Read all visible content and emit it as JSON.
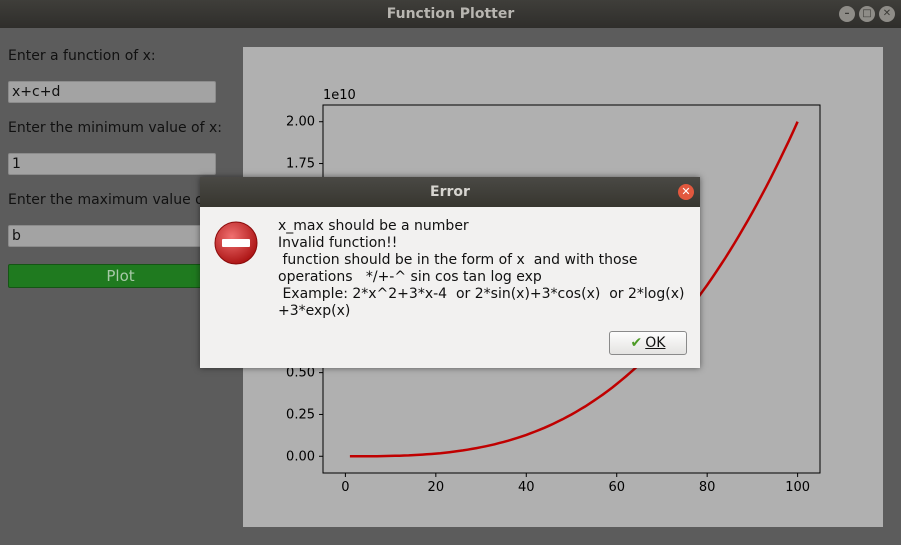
{
  "window": {
    "title": "Function Plotter"
  },
  "form": {
    "function_label": "Enter a function of x:",
    "function_value": "x+c+d",
    "min_label": "Enter the minimum value of x:",
    "min_value": "1",
    "max_label": "Enter the maximum value of",
    "max_value": "b",
    "plot_label": "Plot"
  },
  "chart_data": {
    "type": "line",
    "offset_text": "1e10",
    "x": [
      1,
      10,
      20,
      30,
      40,
      50,
      60,
      65,
      70,
      75,
      80,
      85,
      90,
      95,
      100
    ],
    "y": [
      0.0,
      0.0002,
      0.0016,
      0.0054,
      0.0128,
      0.025,
      0.0432,
      0.0549,
      0.0686,
      0.0844,
      0.1024,
      0.1228,
      0.1458,
      0.1715,
      0.2
    ],
    "y_scale_note": "",
    "xticks": [
      "0",
      "20",
      "40",
      "60",
      "80",
      "100"
    ],
    "yticks": [
      "0.00",
      "0.25",
      "0.50",
      "0.75",
      "1.00",
      "1.25",
      "1.50",
      "1.75",
      "2.00"
    ],
    "xlim": [
      -4.95,
      104.95
    ],
    "ylim": [
      -0.1,
      2.1
    ],
    "line_color": "#c00000"
  },
  "dialog": {
    "title": "Error",
    "lines": [
      "x_max should be a number",
      "Invalid function!!",
      " function should be in the form of x  and with those",
      "operations   */+-^ sin cos tan log exp",
      " Example: 2*x^2+3*x-4  or 2*sin(x)+3*cos(x)  or 2*log(x)",
      "+3*exp(x)"
    ],
    "ok_label": "OK"
  }
}
